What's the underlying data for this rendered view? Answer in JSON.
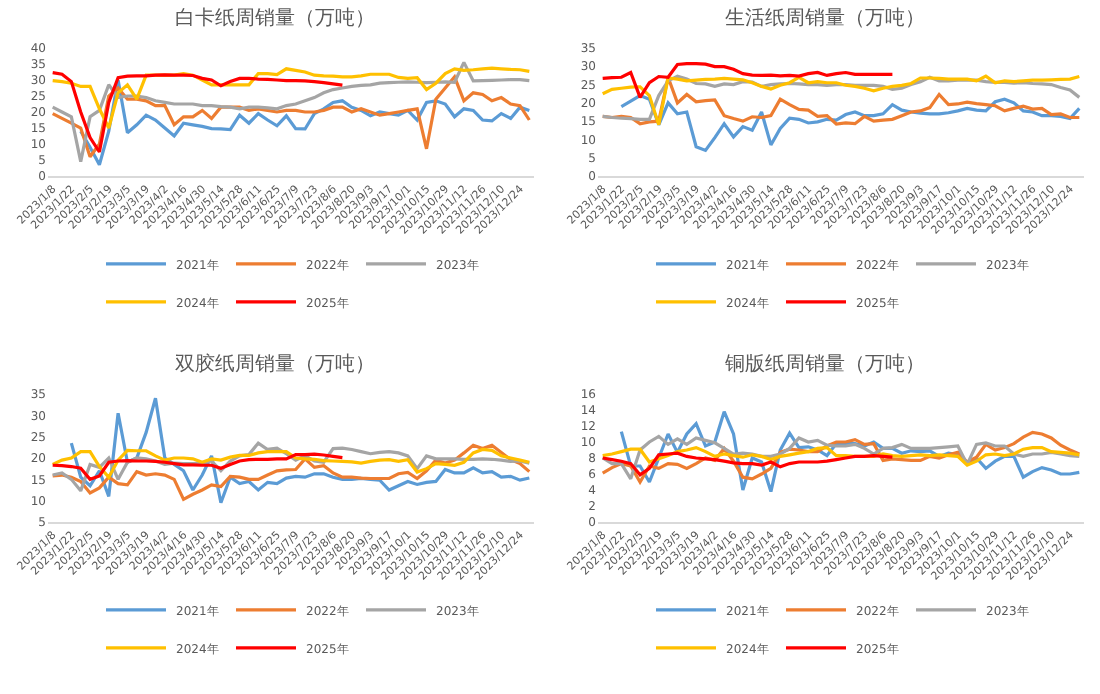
{
  "chart_data": [
    {
      "type": "line",
      "title": "白卡纸周销量（万吨）",
      "categories": [
        "2023/1/8",
        null,
        "2023/1/22",
        null,
        "2023/2/5",
        null,
        "2023/2/19",
        null,
        "2023/3/5",
        null,
        "2023/3/19",
        null,
        "2023/4/2",
        null,
        "2023/4/16",
        null,
        "2023/4/30",
        null,
        "2023/5/14",
        null,
        "2023/5/28",
        null,
        "2023/6/11",
        null,
        "2023/6/25",
        null,
        "2023/7/9",
        null,
        "2023/7/23",
        null,
        "2023/8/6",
        null,
        "2023/8/20",
        null,
        "2023/9/3",
        null,
        "2023/9/17",
        null,
        "2023/10/1",
        null,
        "2023/10/15",
        null,
        "2023/10/29",
        null,
        "2023/11/12",
        null,
        "2023/11/26",
        null,
        "2023/12/10",
        null,
        "2023/12/24",
        null
      ],
      "ylim": [
        0,
        40
      ],
      "yticks": [
        0,
        5,
        10,
        15,
        20,
        25,
        30,
        35,
        40
      ],
      "grid": false,
      "legend": "bottom",
      "series": [
        {
          "name": "2021年",
          "color": "#5b9bd5",
          "values": [
            null,
            null,
            null,
            14,
            9,
            3.5,
            14,
            30,
            13.5,
            16,
            19,
            17.5,
            15,
            12.5,
            16.5,
            16,
            15.5,
            14.8,
            14.7,
            14.5,
            19,
            16.5,
            19.5,
            17.5,
            15.7,
            18.8,
            14.8,
            14.7,
            19.5,
            21,
            23,
            23.5,
            21.5,
            20.5,
            18.8,
            20,
            19.5,
            19,
            20.5,
            17.5,
            23,
            23.5,
            22.5,
            18.5,
            21,
            20.5,
            17.5,
            17.2,
            19.5,
            18,
            21.5,
            20.5
          ]
        },
        {
          "name": "2022年",
          "color": "#ed7d31",
          "values": [
            19.5,
            18,
            16.5,
            15,
            6,
            10,
            25,
            27.5,
            24,
            24,
            23.5,
            22,
            22,
            16,
            18.5,
            18.5,
            20.5,
            18,
            21.5,
            21.5,
            21.5,
            20.5,
            21,
            20.5,
            20,
            20.5,
            20.5,
            20,
            20,
            20.5,
            21.5,
            21.5,
            20,
            21,
            20,
            19,
            19.5,
            20,
            20.5,
            21,
            8.5,
            24,
            27.5,
            31,
            23.5,
            26,
            25.5,
            23.5,
            24.5,
            22.5,
            22,
            17.5
          ]
        },
        {
          "name": "2023年",
          "color": "#a5a5a5",
          "values": [
            21.5,
            20,
            18.5,
            4.5,
            18.5,
            20.5,
            28.5,
            24.5,
            25,
            25,
            24.5,
            23.5,
            23,
            22.5,
            22.5,
            22.5,
            22,
            22,
            21.7,
            21.5,
            21,
            21.5,
            21.5,
            21.3,
            21,
            22,
            22.5,
            23.5,
            24.5,
            26,
            27,
            27.5,
            28,
            28.3,
            28.5,
            29,
            29.2,
            29.3,
            29.4,
            29.3,
            29.2,
            29.3,
            29.4,
            29.3,
            35.5,
            29.7,
            29.8,
            29.9,
            30,
            30.1,
            30.1,
            29.8
          ]
        },
        {
          "name": "2024年",
          "color": "#ffc000",
          "values": [
            29.8,
            29.5,
            29,
            28,
            28,
            21,
            15,
            26,
            28.5,
            24,
            31.5,
            31.5,
            31.5,
            31.5,
            32,
            31.5,
            30,
            28.5,
            28.5,
            28.5,
            28.5,
            28.5,
            32,
            32,
            31.7,
            33.5,
            33,
            32.5,
            31.5,
            31.3,
            31.2,
            31,
            31,
            31.3,
            31.8,
            31.8,
            31.8,
            30.8,
            30.5,
            30.7,
            27,
            29,
            32,
            33.5,
            33,
            33.2,
            33.5,
            33.7,
            33.5,
            33.3,
            33.2,
            32.7
          ]
        },
        {
          "name": "2025年",
          "color": "#ff0000",
          "values": [
            32.3,
            31.8,
            29.5,
            20,
            12,
            7.5,
            23,
            30.7,
            31.2,
            31.3,
            31.3,
            31.5,
            31.6,
            31.5,
            31.5,
            31.4,
            30.5,
            30,
            28.2,
            29.5,
            30.5,
            30.5,
            30.3,
            30.2,
            30,
            29.8,
            29.8,
            29.7,
            29.5,
            29.2,
            28.8,
            28.4,
            null,
            null,
            null,
            null,
            null,
            null,
            null,
            null,
            null,
            null,
            null,
            null,
            null,
            null,
            null,
            null,
            null,
            null,
            null,
            null
          ]
        }
      ]
    },
    {
      "type": "line",
      "title": "生活纸周销量（万吨）",
      "categories": [
        "2023/1/8",
        null,
        "2023/1/22",
        null,
        "2023/2/5",
        null,
        "2023/2/19",
        null,
        "2023/3/5",
        null,
        "2023/3/19",
        null,
        "2023/4/2",
        null,
        "2023/4/16",
        null,
        "2023/4/30",
        null,
        "2023/5/14",
        null,
        "2023/5/28",
        null,
        "2023/6/11",
        null,
        "2023/6/25",
        null,
        "2023/7/9",
        null,
        "2023/7/23",
        null,
        "2023/8/6",
        null,
        "2023/8/20",
        null,
        "2023/9/3",
        null,
        "2023/9/17",
        null,
        "2023/10/1",
        null,
        "2023/10/15",
        null,
        "2023/10/29",
        null,
        "2023/11/12",
        null,
        "2023/11/26",
        null,
        "2023/12/10",
        null,
        "2023/12/24",
        null
      ],
      "ylim": [
        0,
        35
      ],
      "yticks": [
        0,
        5,
        10,
        15,
        20,
        25,
        30,
        35
      ],
      "grid": false,
      "legend": "bottom",
      "series": [
        {
          "name": "2021年",
          "color": "#5b9bd5",
          "values": [
            null,
            null,
            19,
            20.5,
            22,
            21,
            14,
            20,
            17,
            17.5,
            8,
            7,
            10.5,
            14.3,
            10.7,
            13.5,
            12.5,
            17.5,
            8.5,
            13,
            15.8,
            15.5,
            14.5,
            14.8,
            15.5,
            15.3,
            16.8,
            17.5,
            16.5,
            16.5,
            17,
            19.5,
            18,
            17.5,
            17.2,
            17,
            17,
            17.3,
            17.8,
            18.5,
            18,
            17.8,
            20.3,
            21,
            20,
            17.8,
            17.5,
            16.5,
            16.5,
            16.3,
            15.7,
            18.5
          ]
        },
        {
          "name": "2022年",
          "color": "#ed7d31",
          "values": [
            16.3,
            16,
            16.3,
            16,
            14.3,
            14.8,
            15,
            27,
            20,
            22.3,
            20.3,
            20.6,
            20.8,
            16.5,
            15.7,
            15,
            16.2,
            16,
            16.5,
            21,
            19.5,
            18.2,
            18,
            16.3,
            16.5,
            14.2,
            14.5,
            14.3,
            16.3,
            15,
            15.3,
            15.5,
            16.5,
            17.5,
            17.8,
            18.7,
            22.3,
            19.5,
            19.7,
            20.2,
            19.8,
            19.5,
            19.2,
            17.8,
            18.5,
            19.1,
            18.3,
            18.5,
            16.8,
            17,
            16,
            16
          ]
        },
        {
          "name": "2023年",
          "color": "#a5a5a5",
          "values": [
            16.3,
            16,
            15.8,
            15.7,
            15.5,
            15.5,
            22,
            26,
            27.3,
            26.5,
            25.3,
            25.2,
            24.5,
            25.2,
            25,
            25.8,
            25.7,
            24.5,
            25,
            25.2,
            25.3,
            25.2,
            25,
            25,
            24.8,
            25,
            25,
            24.8,
            24.8,
            24.8,
            24.5,
            23.7,
            24,
            25,
            25.8,
            27,
            26,
            26,
            26.2,
            26.2,
            26.2,
            25.8,
            25.6,
            25.6,
            25.4,
            25.5,
            25.3,
            25.2,
            25,
            24.2,
            23.5,
            21.5
          ]
        },
        {
          "name": "2024年",
          "color": "#ffc000",
          "values": [
            22.5,
            23.7,
            24,
            24.3,
            24.4,
            22,
            14,
            26.8,
            26.5,
            26,
            26.2,
            26.4,
            26.5,
            26.7,
            26.5,
            26.3,
            25.5,
            24.5,
            23.8,
            24.8,
            25.5,
            27,
            25.5,
            25.8,
            25.5,
            25.5,
            24.8,
            24.5,
            24,
            23.3,
            24,
            24.5,
            24.8,
            25.3,
            26.8,
            26.8,
            26.7,
            26.5,
            26.5,
            26.5,
            26,
            27.3,
            25.5,
            26,
            25.8,
            26,
            26.2,
            26.2,
            26.3,
            26.4,
            26.5,
            27.2
          ]
        },
        {
          "name": "2025年",
          "color": "#ff0000",
          "values": [
            26.7,
            26.9,
            27,
            28.3,
            21.5,
            25.5,
            27.2,
            27,
            30.5,
            30.7,
            30.7,
            30.6,
            29.9,
            29.9,
            29.2,
            28,
            27.6,
            27.5,
            27.6,
            27.4,
            27.5,
            27.3,
            28,
            28.3,
            27.5,
            28,
            28.3,
            27.8,
            27.8,
            27.8,
            27.8,
            27.8,
            null,
            null,
            null,
            null,
            null,
            null,
            null,
            null,
            null,
            null,
            null,
            null,
            null,
            null,
            null,
            null,
            null,
            null,
            null,
            null
          ]
        }
      ]
    },
    {
      "type": "line",
      "title": "双胶纸周销量（万吨）",
      "categories": [
        "2023/1/8",
        null,
        "2023/1/22",
        null,
        "2023/2/5",
        null,
        "2023/2/19",
        null,
        "2023/3/5",
        null,
        "2023/3/19",
        null,
        "2023/4/2",
        null,
        "2023/4/16",
        null,
        "2023/4/30",
        null,
        "2023/5/14",
        null,
        "2023/5/28",
        null,
        "2023/6/11",
        null,
        "2023/6/25",
        null,
        "2023/7/9",
        null,
        "2023/7/23",
        null,
        "2023/8/6",
        null,
        "2023/8/20",
        null,
        "2023/9/3",
        null,
        "2023/9/17",
        null,
        "2023/10/1",
        null,
        "2023/10/15",
        null,
        "2023/10/29",
        null,
        "2023/11/12",
        null,
        "2023/11/26",
        null,
        "2023/12/10",
        null,
        "2023/12/24",
        null
      ],
      "ylim": [
        5,
        35
      ],
      "yticks": [
        5,
        10,
        15,
        20,
        25,
        30,
        35
      ],
      "grid": false,
      "legend": "bottom",
      "series": [
        {
          "name": "2021年",
          "color": "#5b9bd5",
          "values": [
            null,
            null,
            23.5,
            15.5,
            13.5,
            17,
            11,
            30.5,
            19,
            20,
            26,
            34,
            20,
            18.5,
            17,
            12.5,
            16,
            20.5,
            9.5,
            15.5,
            14,
            14.5,
            12.5,
            14.3,
            14,
            15.3,
            15.7,
            15.5,
            16.3,
            16.3,
            15.5,
            15,
            15,
            15.2,
            15,
            14.8,
            12.5,
            13.5,
            14.5,
            13.8,
            14.3,
            14.5,
            17.3,
            16.5,
            16.5,
            17.7,
            16.5,
            16.8,
            15.5,
            15.7,
            14.8,
            15.3
          ]
        },
        {
          "name": "2022年",
          "color": "#ed7d31",
          "values": [
            15.8,
            16,
            15.5,
            14.5,
            11.8,
            13,
            15.5,
            14,
            13.7,
            16.8,
            16,
            16.3,
            16,
            15,
            10.3,
            11.5,
            12.5,
            13.7,
            13.3,
            15.7,
            15.5,
            15,
            15,
            16,
            17,
            17.2,
            17.3,
            19.8,
            17.8,
            18.2,
            16.5,
            15.5,
            15.5,
            15.3,
            15.2,
            15.2,
            15.2,
            16.3,
            16.6,
            15.2,
            17,
            19.5,
            18.8,
            19.5,
            21.2,
            23,
            22.2,
            23,
            21.3,
            19.6,
            18.7,
            16.8
          ]
        },
        {
          "name": "2023年",
          "color": "#a5a5a5",
          "values": [
            16,
            16.5,
            15,
            12.3,
            18.5,
            17.8,
            20,
            15,
            19,
            20,
            19.8,
            19.3,
            18.5,
            18.8,
            18.7,
            18.7,
            18.8,
            19.3,
            17,
            19.3,
            20.5,
            20.8,
            23.5,
            22,
            22.3,
            21,
            19.5,
            20.5,
            19.3,
            19,
            22.2,
            22.3,
            22,
            21.5,
            21,
            21.3,
            21.5,
            21.2,
            20.5,
            17.5,
            20.5,
            19.8,
            19.8,
            19.8,
            19.7,
            19.7,
            19.8,
            19.7,
            19.5,
            19.2,
            19.3,
            18.8
          ]
        },
        {
          "name": "2024年",
          "color": "#ffc000",
          "values": [
            18.5,
            19.5,
            20,
            21.5,
            21.5,
            18,
            15.5,
            19.5,
            21.8,
            21.7,
            21.7,
            20.5,
            19.5,
            20,
            20,
            19.8,
            19,
            19.8,
            19.5,
            20.2,
            20.6,
            20.6,
            21.2,
            21.5,
            21.5,
            21.5,
            20,
            19.8,
            19.7,
            19.4,
            19.3,
            19.2,
            19.1,
            18.8,
            19.2,
            19.5,
            19.6,
            19.2,
            19.6,
            16.7,
            17.5,
            18.7,
            18.5,
            18.3,
            19,
            21.2,
            22,
            21.8,
            20.5,
            20,
            19.5,
            19
          ]
        },
        {
          "name": "2025年",
          "color": "#ff0000",
          "values": [
            18.3,
            18.2,
            18,
            17.6,
            15,
            15.8,
            19,
            19.3,
            19.4,
            19.3,
            19.3,
            19.2,
            19,
            18.7,
            18.4,
            18.4,
            18.3,
            18.3,
            17.6,
            18.5,
            19.3,
            19.6,
            19.7,
            19.7,
            19.8,
            19.8,
            20.8,
            20.8,
            20.9,
            20.7,
            20.4,
            20.1,
            null,
            null,
            null,
            null,
            null,
            null,
            null,
            null,
            null,
            null,
            null,
            null,
            null,
            null,
            null,
            null,
            null,
            null,
            null,
            null
          ]
        }
      ]
    },
    {
      "type": "line",
      "title": "铜版纸周销量（万吨）",
      "categories": [
        "2023/1/8",
        null,
        "2023/1/22",
        null,
        "2023/2/5",
        null,
        "2023/2/19",
        null,
        "2023/3/5",
        null,
        "2023/3/19",
        null,
        "2023/4/2",
        null,
        "2023/4/16",
        null,
        "2023/4/30",
        null,
        "2023/5/14",
        null,
        "2023/5/28",
        null,
        "2023/6/11",
        null,
        "2023/6/25",
        null,
        "2023/7/9",
        null,
        "2023/7/23",
        null,
        "2023/8/6",
        null,
        "2023/8/20",
        null,
        "2023/9/3",
        null,
        "2023/9/17",
        null,
        "2023/10/1",
        null,
        "2023/10/15",
        null,
        "2023/10/29",
        null,
        "2023/11/12",
        null,
        "2023/11/26",
        null,
        "2023/12/10",
        null,
        "2023/12/24",
        null
      ],
      "ylim": [
        0,
        16
      ],
      "yticks": [
        0,
        2,
        4,
        6,
        8,
        10,
        12,
        14,
        16
      ],
      "grid": false,
      "legend": "bottom",
      "series": [
        {
          "name": "2021年",
          "color": "#5b9bd5",
          "values": [
            null,
            null,
            11.3,
            7,
            7,
            5,
            8,
            11,
            8.7,
            11,
            12.3,
            9.5,
            10,
            13.8,
            11,
            4,
            8,
            7.5,
            3.8,
            9,
            11.1,
            9.3,
            9.4,
            9,
            8.3,
            9.8,
            9.8,
            9.8,
            9.5,
            10,
            9.2,
            9.2,
            8.6,
            8.9,
            8.8,
            8.9,
            8.2,
            8.6,
            8.4,
            7.3,
            8,
            6.7,
            7.6,
            8.2,
            8.2,
            5.6,
            6.3,
            6.8,
            6.5,
            6,
            6,
            6.2
          ]
        },
        {
          "name": "2022年",
          "color": "#ed7d31",
          "values": [
            6.1,
            6.8,
            7.3,
            7,
            5,
            7,
            6.7,
            7.3,
            7.2,
            6.7,
            7.3,
            8,
            7.7,
            9.2,
            7.6,
            5.6,
            5.4,
            6,
            6.7,
            8.7,
            9.1,
            9,
            8.8,
            8.8,
            9.5,
            10,
            10,
            10.3,
            9.7,
            9.8,
            7.7,
            7.9,
            7.8,
            7.7,
            7.7,
            8.2,
            8,
            8.4,
            8.7,
            7.5,
            8.1,
            9.7,
            9,
            9.3,
            9.8,
            10.6,
            11.2,
            11,
            10.5,
            9.6,
            9,
            8.5
          ]
        },
        {
          "name": "2023年",
          "color": "#a5a5a5",
          "values": [
            8,
            7.3,
            7.3,
            5.4,
            9,
            10,
            10.7,
            9.7,
            10.4,
            9.7,
            10.5,
            10.2,
            9.9,
            9.2,
            8.5,
            8.6,
            8.5,
            8.2,
            8.2,
            8.5,
            9.2,
            10.5,
            10,
            10.2,
            9.6,
            9.5,
            9.5,
            9.7,
            9.2,
            8.5,
            9.2,
            9.3,
            9.7,
            9.2,
            9.2,
            9.2,
            9.3,
            9.4,
            9.5,
            7.2,
            9.7,
            9.9,
            9.5,
            9.5,
            8.5,
            8.2,
            8.5,
            8.5,
            8.7,
            8.5,
            8.3,
            8.2
          ]
        },
        {
          "name": "2024年",
          "color": "#ffc000",
          "values": [
            8.3,
            8.5,
            8.8,
            9.1,
            9.1,
            7.5,
            7.9,
            8.3,
            8.8,
            9,
            9.3,
            8.8,
            8.2,
            8.5,
            8.3,
            8.1,
            8.4,
            8.2,
            7.8,
            8.2,
            8.4,
            8.6,
            8.8,
            9.2,
            9.3,
            8.3,
            8.3,
            8.2,
            8.2,
            8.2,
            8.5,
            8.3,
            8.2,
            8.3,
            8.4,
            8.3,
            8.4,
            8.3,
            8.2,
            7.1,
            7.6,
            8.4,
            8.5,
            8.3,
            8.5,
            9.1,
            9.3,
            9.3,
            8.8,
            8.7,
            8.6,
            8.4
          ]
        },
        {
          "name": "2025年",
          "color": "#ff0000",
          "values": [
            8,
            7.8,
            7.6,
            7.3,
            5.9,
            6.7,
            8.4,
            8.5,
            8.6,
            8.2,
            8,
            7.9,
            7.8,
            7.6,
            7.4,
            7.3,
            7.3,
            7.1,
            7.5,
            6.9,
            7.3,
            7.5,
            7.5,
            7.5,
            7.6,
            7.8,
            8,
            8.2,
            8.2,
            8.3,
            8.2,
            8.1,
            null,
            null,
            null,
            null,
            null,
            null,
            null,
            null,
            null,
            null,
            null,
            null,
            null,
            null,
            null,
            null,
            null,
            null,
            null,
            null
          ]
        }
      ]
    }
  ]
}
